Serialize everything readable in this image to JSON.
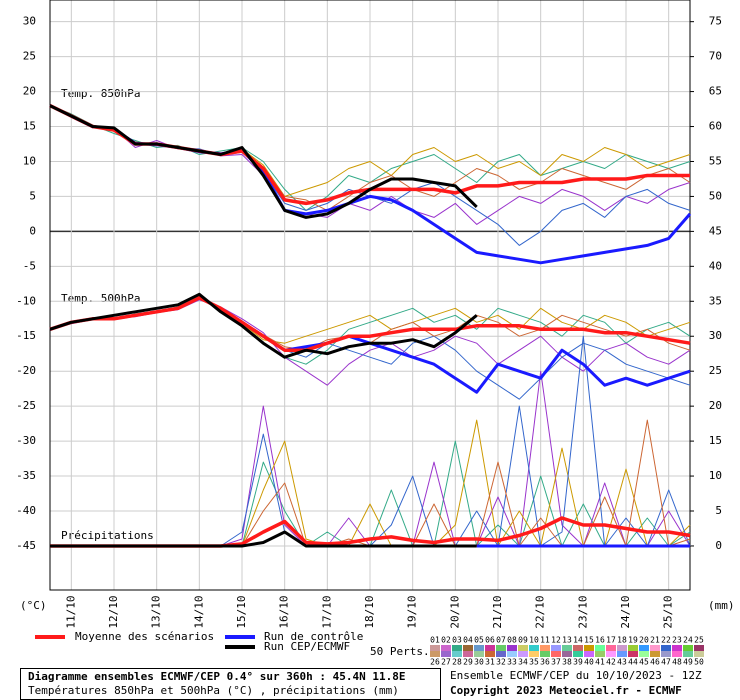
{
  "chart_data": {
    "type": "line",
    "annotations": [
      "Temp. 850hPa",
      "Temp. 500hPa",
      "Précipitations"
    ],
    "ylabel": "(°C)",
    "y2label": "(mm)",
    "x": [
      0,
      12,
      24,
      36,
      48,
      60,
      72,
      84,
      96,
      108,
      120,
      132,
      144,
      156,
      168,
      180,
      192,
      204,
      216,
      228,
      240,
      252,
      264,
      276,
      288,
      300,
      312,
      324,
      336,
      348,
      360
    ],
    "xlim": [
      0,
      360
    ],
    "xticks": [
      {
        "value": 12,
        "label": "11/10"
      },
      {
        "value": 36,
        "label": "12/10"
      },
      {
        "value": 60,
        "label": "13/10"
      },
      {
        "value": 84,
        "label": "14/10"
      },
      {
        "value": 108,
        "label": "15/10"
      },
      {
        "value": 132,
        "label": "16/10"
      },
      {
        "value": 156,
        "label": "17/10"
      },
      {
        "value": 180,
        "label": "18/10"
      },
      {
        "value": 204,
        "label": "19/10"
      },
      {
        "value": 228,
        "label": "20/10"
      },
      {
        "value": 252,
        "label": "21/10"
      },
      {
        "value": 276,
        "label": "22/10"
      },
      {
        "value": 300,
        "label": "23/10"
      },
      {
        "value": 324,
        "label": "24/10"
      },
      {
        "value": 348,
        "label": "25/10"
      }
    ],
    "ylim": [
      -51.3,
      33.1
    ],
    "yticks": [
      30,
      25,
      20,
      15,
      10,
      5,
      0,
      -5,
      -10,
      -15,
      -20,
      -25,
      -30,
      -35,
      -40,
      -45
    ],
    "y2lim": [
      -6.3,
      78.1
    ],
    "y2ticks": [
      75,
      70,
      65,
      60,
      55,
      50,
      45,
      40,
      35,
      30,
      25,
      20,
      15,
      10,
      5,
      0
    ],
    "grid": true,
    "series": [
      {
        "name": "Moyenne des scénarios",
        "color": "#ff1a1a",
        "t850": [
          18,
          16.5,
          15,
          14.5,
          12.5,
          12.5,
          12,
          11.5,
          11,
          11.5,
          9,
          4.5,
          4,
          4.5,
          5.5,
          6,
          6,
          6,
          6,
          5.5,
          6.5,
          6.5,
          7,
          7,
          7,
          7.5,
          7.5,
          7.5,
          8,
          8,
          8
        ],
        "t500": [
          -14,
          -13,
          -12.5,
          -12.5,
          -12,
          -11.5,
          -11,
          -9.5,
          -11,
          -13,
          -15,
          -17,
          -17,
          -16,
          -15,
          -15,
          -14.5,
          -14,
          -14,
          -14,
          -13.5,
          -13.5,
          -13.5,
          -14,
          -14,
          -14,
          -14.5,
          -14.5,
          -15,
          -15.5,
          -16
        ],
        "precip": [
          0,
          0,
          0,
          0,
          0,
          0,
          0,
          0,
          0,
          0.3,
          2,
          3.5,
          0.5,
          0.3,
          0.5,
          1,
          1.3,
          0.8,
          0.5,
          1,
          1,
          0.8,
          1.5,
          2.5,
          4,
          3,
          3,
          2.5,
          2,
          2,
          1.5
        ]
      },
      {
        "name": "Run de contrôle",
        "color": "#1a1aff",
        "t850": [
          18,
          16.5,
          15,
          14.6,
          12.6,
          12.4,
          12,
          11.4,
          11.1,
          11.6,
          8.5,
          3,
          2.5,
          3,
          4,
          5,
          4.5,
          3,
          1,
          -1,
          -3,
          -3.5,
          -4,
          -4.5,
          -4,
          -3.5,
          -3,
          -2.5,
          -2,
          -1,
          2.5
        ],
        "t500": [
          -14,
          -13,
          -12.5,
          -12.5,
          -12,
          -11.5,
          -11,
          -9.5,
          -11,
          -13,
          -15,
          -17,
          -16.5,
          -16,
          -15,
          -16,
          -17,
          -18,
          -19,
          -21,
          -23,
          -19,
          -20,
          -21,
          -17,
          -19,
          -22,
          -21,
          -22,
          -21,
          -20
        ],
        "precip": [
          null,
          null,
          null,
          null,
          null,
          null,
          null,
          null,
          null,
          null,
          null,
          null,
          null,
          null,
          null,
          null,
          null,
          null,
          null,
          null,
          0,
          0,
          0,
          0,
          0,
          0,
          0,
          0,
          0,
          0,
          0
        ]
      },
      {
        "name": "Run CEP/ECMWF",
        "color": "#000000",
        "t850": [
          18,
          16.5,
          15,
          14.8,
          12.5,
          12.5,
          12,
          11.5,
          11,
          12,
          8,
          3,
          2,
          2.5,
          4,
          6,
          7.5,
          7.5,
          7,
          6.5,
          3.5,
          null,
          null,
          null,
          null,
          null,
          null,
          null,
          null,
          null,
          null
        ],
        "t500": [
          -14,
          -13,
          -12.5,
          -12,
          -11.5,
          -11,
          -10.5,
          -9,
          -11.5,
          -13.5,
          -16,
          -18,
          -17,
          -17.5,
          -16.5,
          -16,
          -16,
          -15.5,
          -16.5,
          -14.5,
          -12,
          null,
          null,
          null,
          null,
          null,
          null,
          null,
          null,
          null,
          null
        ],
        "precip": [
          0,
          0,
          0,
          0,
          0,
          0,
          0,
          0,
          0,
          0,
          0.5,
          2,
          0,
          0,
          0,
          0,
          0,
          0,
          0,
          0,
          0,
          null,
          null,
          null,
          null,
          null,
          null,
          null,
          null,
          null,
          null
        ]
      }
    ],
    "members_label": "50 Perts.",
    "members": [
      {
        "name": "01",
        "color": "#cc9999"
      },
      {
        "name": "02",
        "color": "#cc66cc"
      },
      {
        "name": "03",
        "color": "#33aa88",
        "t850": [
          18,
          16.8,
          15.2,
          14,
          13,
          12,
          12.3,
          11,
          11.5,
          12,
          10,
          6,
          3,
          5,
          8,
          7,
          9,
          10,
          11,
          9,
          7,
          10,
          11,
          8,
          9,
          10,
          9,
          11,
          10,
          9,
          10
        ],
        "t500": [
          -14,
          -13,
          -12.4,
          -12.6,
          -11.8,
          -11.4,
          -10.8,
          -9.3,
          -11.2,
          -13.5,
          -16,
          -18,
          -19,
          -17,
          -14,
          -13,
          -12,
          -11,
          -13,
          -12,
          -14,
          -11,
          -12,
          -13,
          -15,
          -12,
          -13,
          -16,
          -14,
          -13,
          -15
        ],
        "precip": [
          0,
          0,
          0,
          0,
          0,
          0,
          0,
          0,
          0,
          0,
          12,
          5,
          0,
          2,
          0,
          0,
          8,
          0,
          0,
          15,
          0,
          3,
          0,
          10,
          0,
          6,
          0,
          0,
          4,
          0,
          2
        ]
      },
      {
        "name": "04",
        "color": "#996633"
      },
      {
        "name": "05",
        "color": "#6699cc"
      },
      {
        "name": "06",
        "color": "#cc3399"
      },
      {
        "name": "07",
        "color": "#66cc66"
      },
      {
        "name": "08",
        "color": "#9933cc",
        "t850": [
          18,
          16.3,
          14.8,
          14.7,
          12,
          13,
          11.8,
          11.6,
          10.8,
          11,
          8,
          3,
          2.5,
          2,
          4,
          3,
          5,
          3,
          2,
          4,
          1,
          3,
          5,
          4,
          6,
          5,
          3,
          5,
          4,
          6,
          7
        ],
        "t500": [
          -14,
          -13.2,
          -12.6,
          -12.4,
          -12.2,
          -11.6,
          -11.2,
          -9.8,
          -10.8,
          -12.5,
          -14.5,
          -18,
          -20,
          -22,
          -19,
          -17,
          -16,
          -18,
          -17,
          -15,
          -16,
          -19,
          -17,
          -15,
          -18,
          -20,
          -17,
          -16,
          -18,
          -19,
          -17
        ],
        "precip": [
          0,
          0,
          0,
          0,
          0,
          0,
          0,
          0,
          0,
          1,
          20,
          3,
          0,
          0,
          4,
          0,
          0,
          0,
          12,
          0,
          0,
          7,
          0,
          25,
          3,
          0,
          9,
          0,
          0,
          5,
          0
        ]
      },
      {
        "name": "09",
        "color": "#cccc66"
      },
      {
        "name": "10",
        "color": "#33cccc"
      },
      {
        "name": "11",
        "color": "#ff9966"
      },
      {
        "name": "12",
        "color": "#9999ff"
      },
      {
        "name": "13",
        "color": "#66cc99"
      },
      {
        "name": "14",
        "color": "#cc6666"
      },
      {
        "name": "15",
        "color": "#cc9900",
        "t850": [
          18,
          16.6,
          15.1,
          14.3,
          12.8,
          12.3,
          12.2,
          11.3,
          11.2,
          11.8,
          9.5,
          5,
          6,
          7,
          9,
          10,
          8,
          11,
          12,
          10,
          11,
          9,
          10,
          8,
          11,
          10,
          12,
          11,
          9,
          10,
          11
        ],
        "t500": [
          -14,
          -12.9,
          -12.4,
          -12.5,
          -11.9,
          -11.5,
          -10.9,
          -9.4,
          -11,
          -13.2,
          -15.5,
          -16,
          -15,
          -14,
          -13,
          -12,
          -14,
          -13,
          -12,
          -11,
          -13,
          -12,
          -14,
          -11,
          -13,
          -14,
          -12,
          -13,
          -15,
          -14,
          -13
        ],
        "precip": [
          0,
          0,
          0,
          0,
          0,
          0,
          0,
          0,
          0,
          0,
          8,
          15,
          1,
          0,
          0,
          6,
          0,
          0,
          0,
          3,
          18,
          0,
          5,
          0,
          14,
          0,
          0,
          11,
          0,
          0,
          3
        ]
      },
      {
        "name": "16",
        "color": "#66ff99"
      },
      {
        "name": "17",
        "color": "#ff6699"
      },
      {
        "name": "18",
        "color": "#cc99cc"
      },
      {
        "name": "19",
        "color": "#99cc33"
      },
      {
        "name": "20",
        "color": "#3399ff"
      },
      {
        "name": "21",
        "color": "#ff99cc"
      },
      {
        "name": "22",
        "color": "#3366cc",
        "t850": [
          18,
          16.4,
          14.9,
          14.6,
          12.4,
          12.7,
          11.9,
          11.8,
          10.9,
          11.3,
          8.5,
          4,
          3,
          4,
          6,
          5,
          4,
          6,
          7,
          5,
          3,
          1,
          -2,
          0,
          3,
          4,
          2,
          5,
          6,
          4,
          3
        ],
        "t500": [
          -14,
          -13.1,
          -12.5,
          -12.4,
          -12.1,
          -11.5,
          -11.1,
          -9.6,
          -11,
          -12.8,
          -15,
          -17,
          -18,
          -16,
          -17,
          -18,
          -19,
          -16,
          -15,
          -17,
          -20,
          -22,
          -24,
          -21,
          -18,
          -16,
          -17,
          -19,
          -20,
          -21,
          -22
        ],
        "precip": [
          0,
          0,
          0,
          0,
          0,
          0,
          0,
          0,
          0,
          2,
          16,
          2,
          0,
          0,
          0,
          0,
          3,
          10,
          0,
          0,
          5,
          0,
          20,
          0,
          2,
          30,
          0,
          4,
          0,
          8,
          0
        ]
      },
      {
        "name": "23",
        "color": "#cc33cc"
      },
      {
        "name": "24",
        "color": "#66cc33"
      },
      {
        "name": "25",
        "color": "#993366"
      },
      {
        "name": "26",
        "color": "#cc9966"
      },
      {
        "name": "27",
        "color": "#9966cc"
      },
      {
        "name": "28",
        "color": "#66cccc"
      },
      {
        "name": "29",
        "color": "#cc6699"
      },
      {
        "name": "30",
        "color": "#99cc99"
      },
      {
        "name": "31",
        "color": "#cc6633",
        "t850": [
          18,
          16.5,
          15,
          14.4,
          12.6,
          12.4,
          12.1,
          11.4,
          11.1,
          11.6,
          9,
          5,
          4.5,
          3,
          5,
          7,
          8,
          6,
          5,
          7,
          9,
          8,
          6,
          7,
          9,
          8,
          7,
          6,
          8,
          9,
          7
        ],
        "t500": [
          -14,
          -13,
          -12.6,
          -12.6,
          -12,
          -11.6,
          -11,
          -9.5,
          -11.1,
          -13,
          -14.8,
          -16.5,
          -17,
          -15.5,
          -15,
          -16,
          -14,
          -13,
          -15,
          -14,
          -12,
          -13,
          -15,
          -14,
          -12,
          -13,
          -14,
          -15,
          -14,
          -16,
          -17
        ],
        "precip": [
          0,
          0,
          0,
          0,
          0,
          0,
          0,
          0,
          0,
          0,
          5,
          9,
          0,
          0,
          1,
          0,
          0,
          0,
          6,
          0,
          0,
          12,
          0,
          4,
          0,
          0,
          7,
          0,
          18,
          0,
          1
        ]
      },
      {
        "name": "32",
        "color": "#6666cc"
      },
      {
        "name": "33",
        "color": "#99ccff"
      },
      {
        "name": "34",
        "color": "#cc99ff"
      },
      {
        "name": "35",
        "color": "#ffcc66"
      },
      {
        "name": "36",
        "color": "#66cc66"
      },
      {
        "name": "37",
        "color": "#ff6666"
      },
      {
        "name": "38",
        "color": "#996699"
      },
      {
        "name": "39",
        "color": "#33cc99"
      },
      {
        "name": "40",
        "color": "#cc66ff"
      },
      {
        "name": "41",
        "color": "#99cc66"
      },
      {
        "name": "42",
        "color": "#ff99ff"
      },
      {
        "name": "43",
        "color": "#6699ff"
      },
      {
        "name": "44",
        "color": "#cc3366"
      },
      {
        "name": "45",
        "color": "#99ff99"
      },
      {
        "name": "46",
        "color": "#cc9933"
      },
      {
        "name": "47",
        "color": "#9999cc"
      },
      {
        "name": "48",
        "color": "#ff66cc"
      },
      {
        "name": "49",
        "color": "#66cc99"
      },
      {
        "name": "50",
        "color": "#cccc99"
      }
    ],
    "footer_title": "Diagramme ensembles ECMWF/CEP 0.4° sur 360h : 45.4N 11.8E",
    "footer_subtitle": "Températures 850hPa et 500hPa (°C) , précipitations (mm)",
    "run_info": "Ensemble ECMWF/CEP du 10/10/2023 - 12Z",
    "copyright": "Copyright 2023 Meteociel.fr - ECMWF"
  }
}
